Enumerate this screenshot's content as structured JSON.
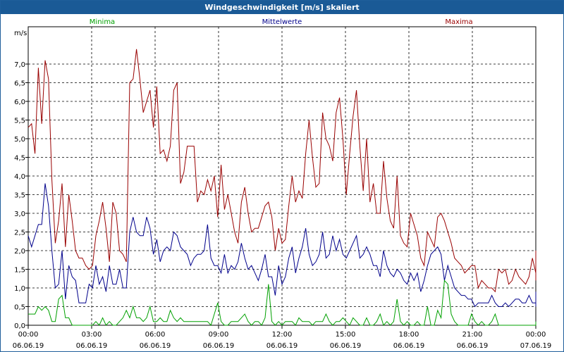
{
  "window": {
    "title": "Windgeschwindigkeit [m/s] skaliert"
  },
  "chart_data": {
    "type": "line",
    "ylabel": "m/s",
    "ylim": [
      0,
      8
    ],
    "yticks": [
      "0,0",
      "0,5",
      "1,0",
      "1,5",
      "2,0",
      "2,5",
      "3,0",
      "3,5",
      "4,0",
      "4,5",
      "5,0",
      "5,5",
      "6,0",
      "6,5",
      "7,0"
    ],
    "xticks": [
      {
        "time": "00:00",
        "date": "06.06.19"
      },
      {
        "time": "03:00",
        "date": "06.06.19"
      },
      {
        "time": "06:00",
        "date": "06.06.19"
      },
      {
        "time": "09:00",
        "date": "06.06.19"
      },
      {
        "time": "12:00",
        "date": "06.06.19"
      },
      {
        "time": "15:00",
        "date": "06.06.19"
      },
      {
        "time": "18:00",
        "date": "06.06.19"
      },
      {
        "time": "21:00",
        "date": "06.06.19"
      },
      {
        "time": "00:00",
        "date": "07.06.19"
      }
    ],
    "grid": true,
    "x_hours_step": 0.16,
    "series": [
      {
        "name": "Maxima",
        "color": "#990000",
        "values": [
          5.3,
          5.4,
          4.6,
          6.9,
          5.4,
          7.1,
          6.6,
          3.9,
          2.2,
          2.8,
          3.8,
          2.1,
          3.5,
          2.8,
          2.0,
          1.8,
          1.8,
          1.6,
          1.5,
          1.6,
          2.4,
          2.8,
          3.3,
          2.6,
          1.7,
          3.3,
          3.0,
          2.0,
          1.9,
          1.7,
          6.5,
          6.6,
          7.4,
          6.6,
          5.7,
          6.0,
          6.3,
          5.3,
          6.4,
          4.6,
          4.7,
          4.4,
          4.8,
          6.3,
          6.5,
          3.8,
          4.1,
          4.8,
          4.8,
          4.8,
          3.3,
          3.6,
          3.5,
          3.9,
          3.6,
          4.0,
          2.9,
          4.3,
          3.1,
          3.5,
          3.0,
          2.5,
          2.2,
          3.3,
          3.7,
          3.0,
          2.5,
          2.6,
          2.6,
          2.9,
          3.2,
          3.3,
          2.9,
          2.0,
          2.6,
          2.2,
          2.3,
          3.2,
          4.0,
          3.3,
          3.6,
          3.4,
          4.6,
          5.5,
          4.5,
          3.7,
          3.8,
          5.7,
          5.0,
          4.8,
          4.4,
          5.7,
          6.1,
          5.0,
          3.5,
          4.6,
          5.6,
          6.3,
          4.8,
          3.6,
          5.0,
          3.3,
          3.8,
          3.0,
          3.0,
          4.4,
          3.4,
          2.8,
          2.6,
          4.0,
          2.4,
          2.2,
          2.1,
          3.0,
          2.7,
          2.4,
          1.8,
          1.6,
          2.5,
          2.3,
          2.1,
          2.9,
          3.0,
          2.8,
          2.5,
          2.2,
          1.8,
          1.7,
          1.6,
          1.4,
          1.5,
          1.6,
          1.6,
          1.0,
          1.2,
          1.1,
          1.0,
          1.0,
          0.9,
          1.5,
          1.4,
          1.5,
          1.1,
          1.2,
          1.5,
          1.3,
          1.2,
          1.1,
          1.3,
          1.8,
          1.4,
          1.2,
          1.5,
          1.7,
          1.9,
          2.0,
          1.8
        ]
      },
      {
        "name": "Mittelwerte",
        "color": "#00008b",
        "values": [
          2.4,
          2.1,
          2.4,
          2.7,
          2.7,
          3.8,
          3.2,
          2.0,
          1.0,
          1.1,
          2.0,
          0.7,
          1.6,
          1.3,
          1.2,
          0.6,
          0.6,
          0.6,
          1.1,
          1.0,
          1.6,
          1.1,
          1.3,
          0.9,
          1.6,
          1.1,
          1.1,
          1.5,
          1.0,
          1.0,
          2.5,
          2.9,
          2.5,
          2.4,
          2.4,
          2.9,
          2.6,
          1.9,
          2.3,
          1.7,
          2.0,
          2.1,
          2.0,
          2.5,
          2.4,
          2.1,
          2.0,
          1.9,
          1.6,
          1.8,
          1.9,
          1.9,
          2.0,
          2.7,
          1.8,
          1.6,
          1.6,
          1.4,
          1.9,
          1.4,
          1.6,
          1.5,
          1.7,
          2.2,
          1.8,
          1.5,
          1.6,
          1.4,
          1.2,
          1.5,
          1.9,
          1.3,
          1.3,
          0.8,
          1.6,
          1.1,
          1.3,
          1.8,
          2.1,
          1.4,
          1.8,
          2.1,
          2.6,
          1.9,
          1.6,
          1.7,
          1.9,
          2.5,
          1.8,
          1.9,
          2.4,
          2.0,
          2.3,
          1.9,
          1.8,
          2.0,
          2.2,
          2.4,
          1.8,
          1.9,
          2.1,
          1.9,
          1.6,
          1.6,
          1.3,
          2.0,
          1.6,
          1.4,
          1.3,
          1.5,
          1.4,
          1.2,
          1.1,
          1.4,
          1.2,
          1.4,
          0.9,
          1.2,
          1.6,
          1.9,
          2.0,
          2.1,
          1.9,
          1.2,
          1.6,
          1.3,
          1.0,
          0.9,
          0.8,
          0.8,
          0.7,
          0.7,
          0.5,
          0.6,
          0.6,
          0.6,
          0.6,
          0.8,
          0.6,
          0.5,
          0.5,
          0.6,
          0.5,
          0.6,
          0.7,
          0.7,
          0.6,
          0.6,
          0.8,
          0.6,
          0.6,
          0.7,
          0.8,
          0.6,
          0.5,
          0.5,
          0.8,
          0.7,
          0.9,
          0.8
        ]
      },
      {
        "name": "Minima",
        "color": "#00a000",
        "values": [
          0.3,
          0.3,
          0.3,
          0.5,
          0.4,
          0.5,
          0.4,
          0.1,
          0.1,
          0.7,
          0.8,
          0.2,
          0.2,
          0.0,
          0.0,
          0.0,
          0.0,
          0.0,
          0.0,
          0.0,
          0.1,
          0.0,
          0.2,
          0.0,
          0.1,
          0.0,
          0.0,
          0.1,
          0.2,
          0.4,
          0.2,
          0.5,
          0.2,
          0.2,
          0.1,
          0.2,
          0.5,
          0.1,
          0.1,
          0.2,
          0.1,
          0.1,
          0.4,
          0.2,
          0.1,
          0.2,
          0.1,
          0.1,
          0.1,
          0.1,
          0.1,
          0.1,
          0.1,
          0.1,
          0.0,
          0.3,
          0.6,
          0.1,
          0.0,
          0.0,
          0.1,
          0.1,
          0.1,
          0.2,
          0.3,
          0.1,
          0.0,
          0.1,
          0.1,
          0.0,
          0.2,
          1.1,
          0.1,
          0.0,
          0.1,
          0.0,
          0.1,
          0.1,
          0.1,
          0.0,
          0.2,
          0.1,
          0.1,
          0.1,
          0.0,
          0.1,
          0.1,
          0.1,
          0.3,
          0.1,
          0.0,
          0.1,
          0.1,
          0.2,
          0.1,
          0.0,
          0.2,
          0.1,
          0.0,
          0.0,
          0.2,
          0.0,
          0.0,
          0.1,
          0.3,
          0.0,
          0.1,
          0.0,
          0.1,
          0.7,
          0.1,
          0.0,
          0.1,
          0.0,
          0.0,
          0.1,
          0.0,
          0.0,
          0.5,
          0.0,
          0.0,
          0.4,
          0.2,
          1.2,
          1.1,
          0.3,
          0.1,
          0.0,
          0.0,
          0.0,
          0.0,
          0.3,
          0.1,
          0.0,
          0.1,
          0.0,
          0.0,
          0.1,
          0.3,
          0.0,
          0.0,
          0.0,
          0.0,
          0.0,
          0.0,
          0.0,
          0.0,
          0.0,
          0.0,
          0.0,
          0.0,
          0.0,
          0.1,
          0.0,
          0.0,
          0.0,
          0.1,
          0.0,
          0.0,
          0.1,
          0.0
        ]
      }
    ],
    "legend": [
      "Minima",
      "Mittelwerte",
      "Maxima"
    ]
  }
}
